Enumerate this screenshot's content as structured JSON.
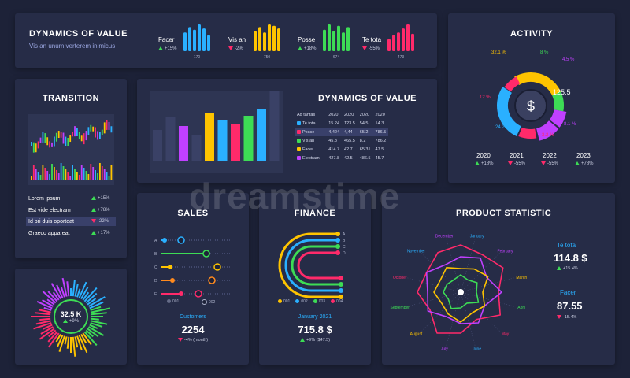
{
  "watermark": "dreamstime",
  "dynamics_top": {
    "title": "DYNAMICS OF VALUE",
    "subtitle": "Vis an unum verterem inimicus",
    "metrics": [
      {
        "name": "Facer",
        "change": "+15%",
        "dir": "up",
        "value": "170",
        "color": "#2ab0ff"
      },
      {
        "name": "Vis an",
        "change": "-2%",
        "dir": "down",
        "value": "750",
        "color": "#ffc400"
      },
      {
        "name": "Posse",
        "change": "+18%",
        "dir": "up",
        "value": "674",
        "color": "#3ddc55"
      },
      {
        "name": "Te tota",
        "change": "-55%",
        "dir": "down",
        "value": "473",
        "color": "#ff2a6a"
      }
    ]
  },
  "activity": {
    "title": "ACTIVITY",
    "center_value": "125.5",
    "labels": [
      "32.1 %",
      "8 %",
      "4.5 %",
      "12 %",
      "8.1 %",
      "24.2 %",
      "3.2 %"
    ],
    "years": [
      {
        "year": "2020",
        "change": "+18%",
        "dir": "up"
      },
      {
        "year": "2021",
        "change": "-55%",
        "dir": "down"
      },
      {
        "year": "2022",
        "change": "-55%",
        "dir": "down"
      },
      {
        "year": "2023",
        "change": "+78%",
        "dir": "up"
      }
    ]
  },
  "transition": {
    "title": "TRANSITION",
    "items": [
      {
        "label": "Lorem ipsum",
        "change": "+15%",
        "dir": "up"
      },
      {
        "label": "Est vide electram",
        "change": "+78%",
        "dir": "up"
      },
      {
        "label": "Id pri duis oporteat",
        "change": "-22%",
        "dir": "down"
      },
      {
        "label": "Graeco appareat",
        "change": "+17%",
        "dir": "up"
      }
    ]
  },
  "dynamics_mid": {
    "title": "DYNAMICS OF VALUE",
    "table": {
      "headers": [
        "Ad tantas",
        "2020",
        "2020",
        "2020",
        "2020"
      ],
      "rows": [
        {
          "name": "Te tota",
          "color": "#2ab0ff",
          "cells": [
            "15.24",
            "123.5",
            "54.5",
            "14.3"
          ]
        },
        {
          "name": "Posse",
          "color": "#ff2a6a",
          "cells": [
            "4,424",
            "4,44",
            "65.2",
            "786.5"
          ]
        },
        {
          "name": "Vis an",
          "color": "#3ddc55",
          "cells": [
            "45.8",
            "465.5",
            "8.2",
            "786.2"
          ]
        },
        {
          "name": "Facer",
          "color": "#ffc400",
          "cells": [
            "414.7",
            "42.7",
            "65.31",
            "47.5"
          ]
        },
        {
          "name": "Electram",
          "color": "#c040ff",
          "cells": [
            "427.8",
            "42.5",
            "486.5",
            "45.7"
          ]
        }
      ]
    }
  },
  "gauge": {
    "value": "32.5 K",
    "change": "+9%"
  },
  "sales": {
    "title": "SALES",
    "rows": [
      "A",
      "B",
      "C",
      "D",
      "E"
    ],
    "legend": [
      "001",
      "002"
    ],
    "customers_label": "Customers",
    "customers_value": "2254",
    "customers_change": "-4% (month)"
  },
  "finance": {
    "title": "FINANCE",
    "letters": [
      "A",
      "B",
      "C",
      "D"
    ],
    "legend": [
      "001",
      "002",
      "003",
      "004"
    ],
    "period": "January 2021",
    "value": "715.8 $",
    "change": "+9% ($47.5)"
  },
  "product": {
    "title": "PRODUCT STATISTIC",
    "months": [
      "January",
      "February",
      "March",
      "April",
      "May",
      "June",
      "July",
      "August",
      "September",
      "October",
      "November",
      "December"
    ],
    "stat1": {
      "name": "Te tota",
      "value": "114.8 $",
      "change": "+15.4%"
    },
    "stat2": {
      "name": "Facer",
      "value": "87.55",
      "change": "-15.4%"
    }
  }
}
